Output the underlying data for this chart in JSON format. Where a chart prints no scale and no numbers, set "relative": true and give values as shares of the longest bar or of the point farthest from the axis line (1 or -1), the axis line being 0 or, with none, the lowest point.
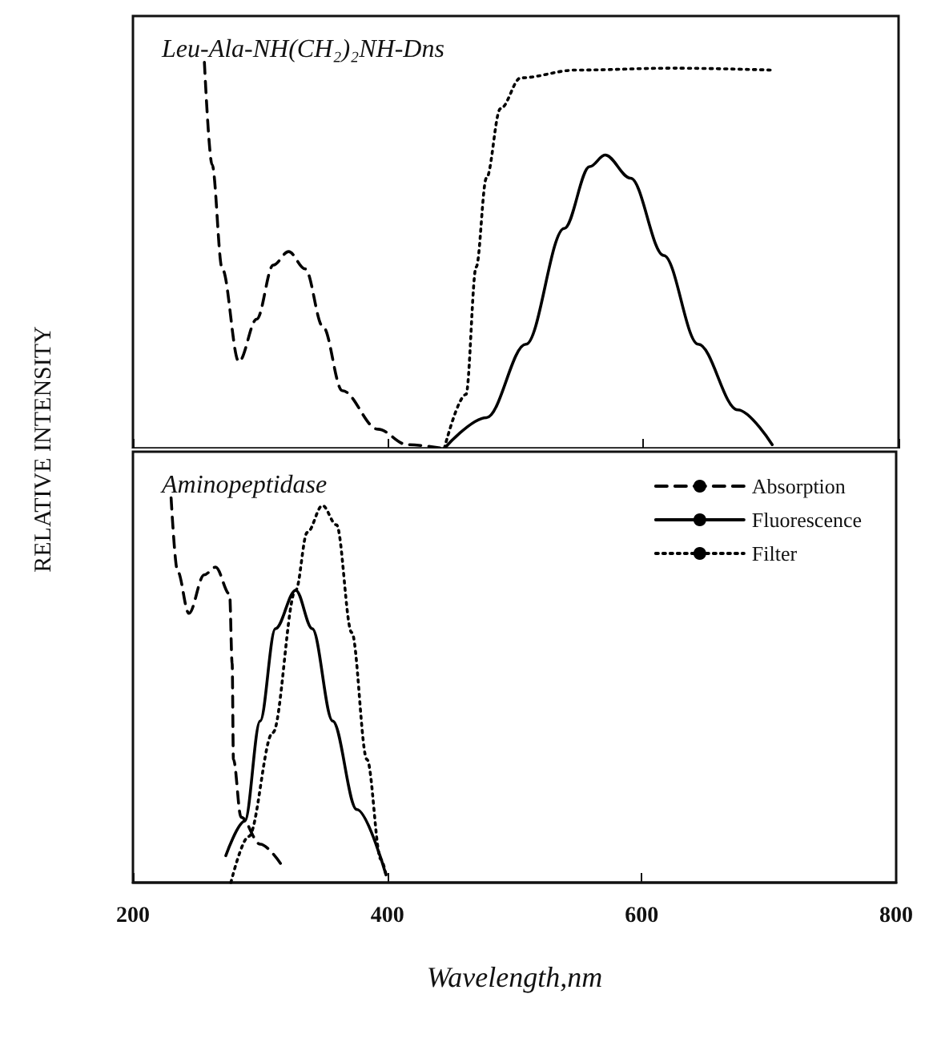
{
  "chart_data": [
    {
      "type": "line",
      "title": "Leu-Ala-NH(CH₂)₂NH-Dns",
      "ylabel": "RELATIVE INTENSITY",
      "relative": true,
      "xlim": [
        200,
        800
      ],
      "xticks": [
        {
          "value": 200,
          "label": null
        },
        {
          "value": 400,
          "label": null
        },
        {
          "value": 600,
          "label": null
        },
        {
          "value": 800,
          "label": null
        }
      ],
      "tick_labels": false,
      "legend": false,
      "grid": false,
      "marker": "none",
      "series": [
        {
          "color": "#000000",
          "line_style": "dashed",
          "x": [
            256,
            262,
            270,
            283,
            297,
            310,
            322,
            335,
            349,
            364,
            392,
            415,
            444
          ],
          "values": [
            1.0,
            0.735,
            0.465,
            0.225,
            0.335,
            0.475,
            0.51,
            0.465,
            0.315,
            0.15,
            0.05,
            0.01,
            0
          ]
        },
        {
          "color": "#000000",
          "line_style": "solid",
          "x": [
            444,
            477,
            508,
            538,
            558,
            570,
            590,
            616,
            643,
            674,
            701
          ],
          "values": [
            0,
            0.08,
            0.27,
            0.57,
            0.73,
            0.76,
            0.7,
            0.5,
            0.27,
            0.1,
            0.01
          ]
        },
        {
          "color": "#000000",
          "line_style": "dotted",
          "x": [
            444,
            461,
            469,
            477,
            488,
            504,
            547,
            624,
            701
          ],
          "values": [
            0,
            0.14,
            0.47,
            0.7,
            0.88,
            0.96,
            0.98,
            0.985,
            0.98
          ]
        }
      ]
    },
    {
      "type": "line",
      "title": "Aminopeptidase",
      "xlabel": "Wavelength,nm",
      "relative": true,
      "xlim": [
        200,
        800
      ],
      "xticks": [
        200,
        400,
        600,
        800
      ],
      "tick_labels": "x",
      "legend": "top right",
      "grid": false,
      "marker": "none",
      "series": [
        {
          "name": "Absorption",
          "color": "#000000",
          "line_style": "dashed",
          "x": [
            230,
            235,
            244,
            256,
            265,
            276,
            278,
            279,
            285,
            300,
            316
          ],
          "values": [
            1.0,
            0.81,
            0.7,
            0.8,
            0.82,
            0.75,
            0.57,
            0.32,
            0.17,
            0.1,
            0.05
          ]
        },
        {
          "name": "Fluorescence",
          "color": "#000000",
          "line_style": "solid",
          "x": [
            273,
            288,
            300,
            312,
            328,
            341,
            357,
            376,
            399
          ],
          "values": [
            0.07,
            0.16,
            0.42,
            0.66,
            0.76,
            0.66,
            0.42,
            0.19,
            0.02
          ]
        },
        {
          "name": "Filter",
          "color": "#000000",
          "line_style": "dotted",
          "x": [
            277,
            291,
            310,
            328,
            337,
            349,
            360,
            372,
            384,
            395,
            399
          ],
          "values": [
            0,
            0.12,
            0.39,
            0.76,
            0.91,
            0.98,
            0.93,
            0.65,
            0.32,
            0.06,
            0.02
          ]
        }
      ]
    }
  ]
}
